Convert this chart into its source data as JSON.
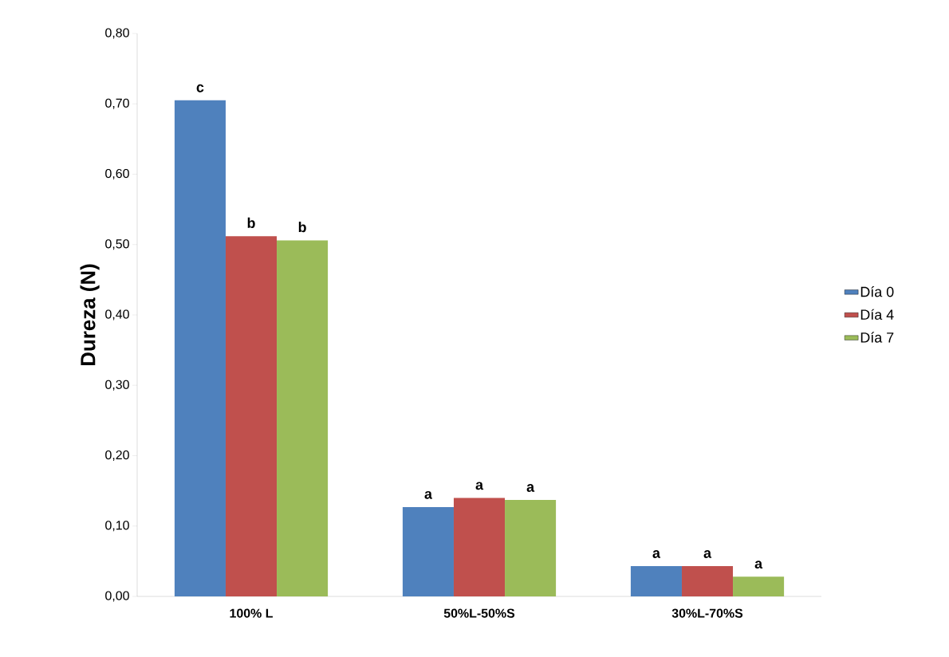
{
  "chart_data": {
    "type": "bar",
    "ylabel": "Dureza (N)",
    "categories": [
      "100% L",
      "50%L-50%S",
      "30%L-70%S"
    ],
    "series": [
      {
        "name": "Día 0",
        "color": "#4f81bd",
        "values": [
          0.705,
          0.127,
          0.043
        ],
        "value_labels": [
          "c",
          "a",
          "a"
        ]
      },
      {
        "name": "Día 4",
        "color": "#c0504d",
        "values": [
          0.512,
          0.14,
          0.043
        ],
        "value_labels": [
          "b",
          "a",
          "a"
        ]
      },
      {
        "name": "Día 7",
        "color": "#9bbb59",
        "values": [
          0.506,
          0.137,
          0.028
        ],
        "value_labels": [
          "b",
          "a",
          "a"
        ]
      }
    ],
    "ylim": [
      0,
      0.8
    ],
    "yticks": [
      {
        "value": 0,
        "label": "0,00"
      },
      {
        "value": 0.1,
        "label": "0,10"
      },
      {
        "value": 0.2,
        "label": "0,20"
      },
      {
        "value": 0.3,
        "label": "0,30"
      },
      {
        "value": 0.4,
        "label": "0,40"
      },
      {
        "value": 0.5,
        "label": "0,50"
      },
      {
        "value": 0.6,
        "label": "0,60"
      },
      {
        "value": 0.7,
        "label": "0,70"
      },
      {
        "value": 0.8,
        "label": "0,80"
      }
    ],
    "grid": false,
    "legend": "right"
  }
}
